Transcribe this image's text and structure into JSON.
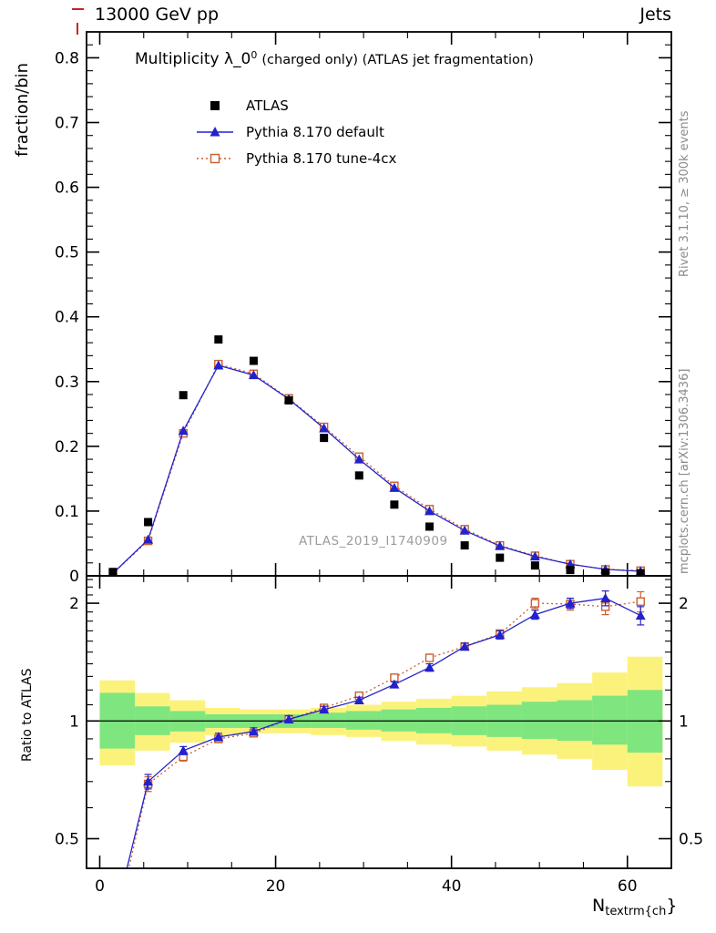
{
  "header": {
    "left": "13000 GeV pp",
    "right": "Jets"
  },
  "side_notes": {
    "rivet": "Rivet 3.1.10, ≥ 300k events",
    "mcplots": "mcplots.cern.ch [arXiv:1306.3436]"
  },
  "watermark": "ATLAS_2019_I1740909",
  "plot_title": {
    "main": "Multiplicity λ_0",
    "sup": "0",
    "rest": "(charged only) (ATLAS jet fragmentation)"
  },
  "axis_labels": {
    "top_y": "fraction/bin",
    "ratio_y": "Ratio to ATLAS",
    "x_main": "N",
    "x_sub": "textrm{ch",
    "x_close": "}"
  },
  "legend": [
    {
      "label": "ATLAS"
    },
    {
      "label": "Pythia 8.170 default"
    },
    {
      "label": "Pythia 8.170 tune-4cx"
    }
  ],
  "colors": {
    "atlas": "#000000",
    "pythia_default": "#2222cc",
    "pythia_tune": "#c85f2e",
    "band_yellow": "#fbf27c",
    "band_green": "#7fe57f",
    "frame": "#000000",
    "gray": "#8a8a8a"
  },
  "chart_data": [
    {
      "type": "line",
      "title": "Multiplicity λ_0^0 (charged only) (ATLAS jet fragmentation)",
      "xlabel": "N_textrm{ch}",
      "ylabel": "fraction/bin",
      "xlim": [
        -1.5,
        65
      ],
      "ylim": [
        0,
        0.84
      ],
      "xticks": [
        0,
        20,
        40,
        60
      ],
      "yticks": [
        0,
        0.1,
        0.2,
        0.3,
        0.4,
        0.5,
        0.6,
        0.7,
        0.8
      ],
      "x": [
        1.5,
        5.5,
        9.5,
        13.5,
        17.5,
        21.5,
        25.5,
        29.5,
        33.5,
        37.5,
        41.5,
        45.5,
        49.5,
        53.5,
        57.5,
        61.5
      ],
      "series": [
        {
          "name": "ATLAS",
          "marker": "filled-square",
          "values": [
            0.006,
            0.083,
            0.279,
            0.365,
            0.332,
            0.271,
            0.213,
            0.155,
            0.11,
            0.076,
            0.047,
            0.028,
            0.016,
            0.009,
            0.005,
            0.004
          ]
        },
        {
          "name": "Pythia 8.170 default",
          "marker": "filled-triangle",
          "values": [
            0.004,
            0.056,
            0.224,
            0.325,
            0.31,
            0.273,
            0.228,
            0.18,
            0.136,
            0.1,
            0.07,
            0.046,
            0.03,
            0.018,
            0.01,
            0.007
          ]
        },
        {
          "name": "Pythia 8.170 tune-4cx",
          "marker": "open-square",
          "values": [
            0.004,
            0.054,
            0.22,
            0.327,
            0.312,
            0.274,
            0.23,
            0.184,
            0.139,
            0.103,
            0.072,
            0.047,
            0.031,
            0.018,
            0.01,
            0.008
          ]
        }
      ]
    },
    {
      "type": "line",
      "title": "Ratio to ATLAS",
      "ylabel": "Ratio to ATLAS",
      "yscale": "log",
      "xlim": [
        -1.5,
        65
      ],
      "ylim": [
        0.42,
        2.35
      ],
      "xticks": [
        0,
        20,
        40,
        60
      ],
      "yticks": [
        0.5,
        1,
        2
      ],
      "x": [
        1.5,
        5.5,
        9.5,
        13.5,
        17.5,
        21.5,
        25.5,
        29.5,
        33.5,
        37.5,
        41.5,
        45.5,
        49.5,
        53.5,
        57.5,
        61.5
      ],
      "series": [
        {
          "name": "Pythia 8.170 default",
          "values": [
            0.3,
            0.7,
            0.84,
            0.91,
            0.94,
            1.01,
            1.07,
            1.13,
            1.24,
            1.37,
            1.55,
            1.66,
            1.87,
            2.0,
            2.06,
            1.86
          ],
          "errors": [
            0.05,
            0.03,
            0.02,
            0.02,
            0.02,
            0.02,
            0.02,
            0.02,
            0.02,
            0.03,
            0.03,
            0.04,
            0.05,
            0.06,
            0.09,
            0.1
          ]
        },
        {
          "name": "Pythia 8.170 tune-4cx",
          "values": [
            0.28,
            0.69,
            0.81,
            0.9,
            0.93,
            1.01,
            1.08,
            1.16,
            1.29,
            1.45,
            1.55,
            1.67,
            2.0,
            1.99,
            1.96,
            2.02
          ],
          "errors": [
            0.05,
            0.03,
            0.02,
            0.02,
            0.02,
            0.02,
            0.02,
            0.02,
            0.02,
            0.03,
            0.03,
            0.04,
            0.06,
            0.07,
            0.09,
            0.12
          ]
        }
      ],
      "bands": {
        "edges": [
          0,
          4,
          8,
          12,
          16,
          20,
          24,
          28,
          32,
          36,
          40,
          44,
          48,
          52,
          56,
          60,
          64
        ],
        "yellow_lo": [
          0.77,
          0.84,
          0.88,
          0.92,
          0.93,
          0.93,
          0.92,
          0.91,
          0.89,
          0.87,
          0.86,
          0.84,
          0.82,
          0.8,
          0.75,
          0.68
        ],
        "yellow_hi": [
          1.27,
          1.18,
          1.13,
          1.08,
          1.07,
          1.07,
          1.08,
          1.1,
          1.12,
          1.14,
          1.16,
          1.19,
          1.22,
          1.25,
          1.33,
          1.46
        ],
        "green_lo": [
          0.85,
          0.92,
          0.94,
          0.96,
          0.96,
          0.96,
          0.96,
          0.95,
          0.94,
          0.93,
          0.92,
          0.91,
          0.9,
          0.89,
          0.87,
          0.83
        ],
        "green_hi": [
          1.18,
          1.09,
          1.06,
          1.04,
          1.04,
          1.04,
          1.05,
          1.06,
          1.07,
          1.08,
          1.09,
          1.1,
          1.12,
          1.13,
          1.16,
          1.2
        ]
      }
    }
  ]
}
